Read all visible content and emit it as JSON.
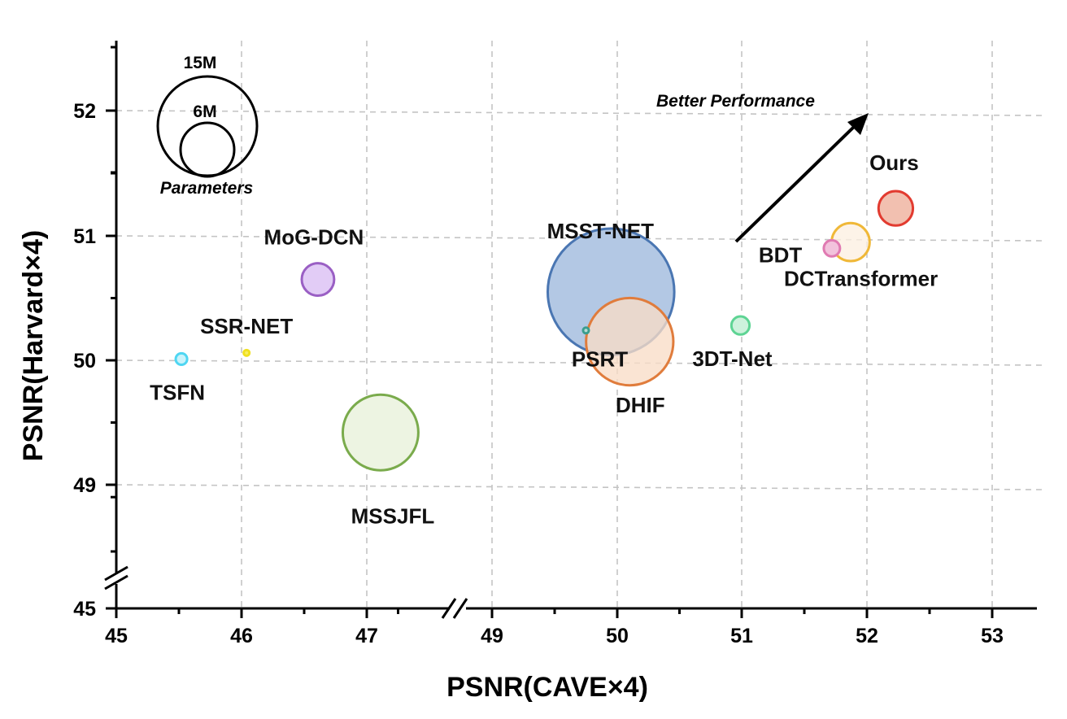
{
  "chart_data": {
    "type": "scatter",
    "variant": "bubble",
    "xlabel": "PSNR(CAVE×4)",
    "ylabel": "PSNR(Harvard×4)",
    "x_ticks": [
      45,
      46,
      47,
      49,
      50,
      51,
      52,
      53
    ],
    "y_ticks": [
      45,
      49,
      50,
      51,
      52
    ],
    "x_axis_break": [
      47.6,
      48.6
    ],
    "y_axis_break": [
      45.5,
      48.6
    ],
    "grid": true,
    "annotation": "Better Performance",
    "size_legend": {
      "title": "Parameters",
      "entries": [
        {
          "label": "15M",
          "params_m": 15
        },
        {
          "label": "6M",
          "params_m": 6
        }
      ]
    },
    "points": [
      {
        "name": "TSFN",
        "x": 45.52,
        "y": 50.01,
        "params_m": 0.2,
        "color": "#4fd6f2",
        "fill": "#c9f3fb"
      },
      {
        "name": "SSR-NET",
        "x": 46.04,
        "y": 50.06,
        "params_m": 0.01,
        "color": "#f0e020",
        "fill": "#f7ee60"
      },
      {
        "name": "MoG-DCN",
        "x": 46.61,
        "y": 50.65,
        "params_m": 1.6,
        "color": "#9a5fc4",
        "fill": "#e2ccf6"
      },
      {
        "name": "MSSJFL",
        "x": 47.22,
        "y": 49.42,
        "params_m": 8.7,
        "color": "#7aab4c",
        "fill": "#edf4e2"
      },
      {
        "name": "MSST-NET",
        "x": 49.95,
        "y": 50.55,
        "params_m": 24.4,
        "color": "#4a76b2",
        "fill": "#b3c8e4"
      },
      {
        "name": "DHIF",
        "x": 50.1,
        "y": 50.15,
        "params_m": 11.6,
        "color": "#e07c3c",
        "fill": "#f9dcc6"
      },
      {
        "name": "PSRT",
        "x": 49.75,
        "y": 50.24,
        "params_m": 0.05,
        "color": "#3a9e8e",
        "fill": "#b6ddd4"
      },
      {
        "name": "3DT-Net",
        "x": 50.99,
        "y": 50.28,
        "params_m": 0.5,
        "color": "#5ed494",
        "fill": "#cdf2dc"
      },
      {
        "name": "DCTransformer",
        "x": 51.87,
        "y": 50.95,
        "params_m": 2.2,
        "color": "#f0b838",
        "fill": "#fdf0e2"
      },
      {
        "name": "BDT",
        "x": 51.72,
        "y": 50.9,
        "params_m": 0.4,
        "color": "#e07ab2",
        "fill": "#f2c2dc"
      },
      {
        "name": "Ours",
        "x": 52.23,
        "y": 51.22,
        "params_m": 1.8,
        "color": "#e23b30",
        "fill": "#f2c0b0"
      }
    ]
  }
}
